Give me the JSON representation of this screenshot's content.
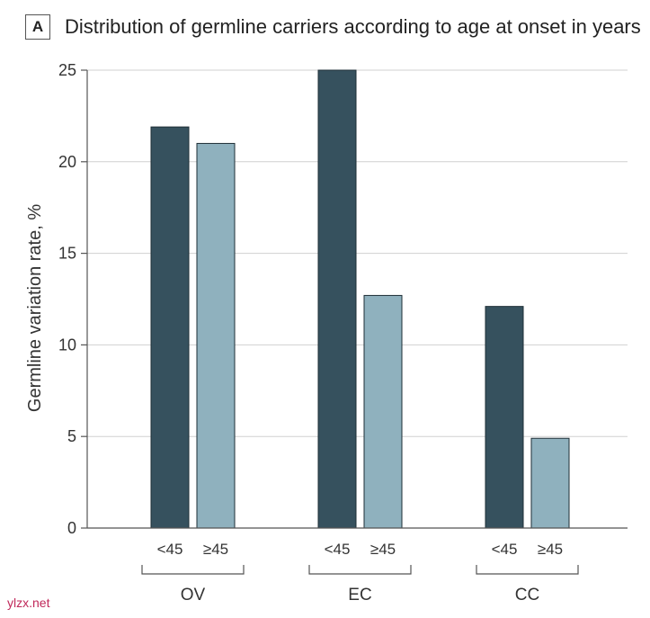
{
  "header": {
    "panel_letter": "A"
  },
  "watermark": "ylzx.net",
  "chart_data": {
    "type": "bar",
    "title": "Distribution of germline carriers according to age at onset in years",
    "ylabel": "Germline variation rate, %",
    "xlabel": "",
    "ylim": [
      0,
      25
    ],
    "yticks": [
      0,
      5,
      10,
      15,
      20,
      25
    ],
    "grid": true,
    "categories": [
      "OV",
      "EC",
      "CC"
    ],
    "series": [
      {
        "name": "<45",
        "color": "#36515e",
        "values": [
          21.9,
          25.0,
          12.1
        ]
      },
      {
        "name": "≥45",
        "color": "#8fb1be",
        "values": [
          21.0,
          12.7,
          4.9
        ]
      }
    ]
  }
}
